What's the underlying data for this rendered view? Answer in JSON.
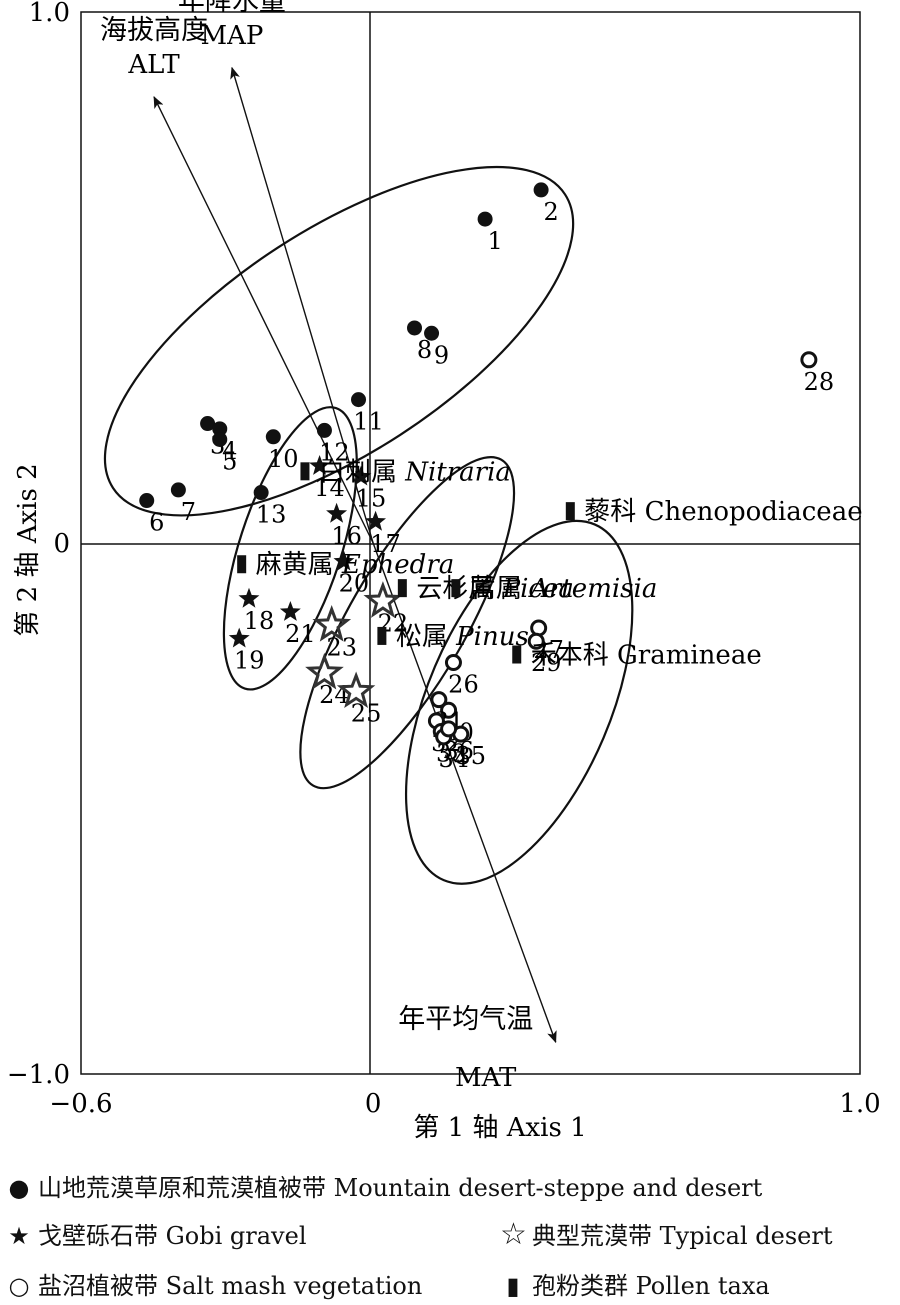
{
  "chart_data": {
    "type": "scatter",
    "title": "",
    "x_axis": {
      "label": "第 1 轴 Axis 1",
      "range": [
        -0.6,
        1.0
      ],
      "ticks": [
        {
          "value": -0.6,
          "label": "−0.6"
        },
        {
          "value": 0,
          "label": "0"
        },
        {
          "value": 1.0,
          "label": "1.0"
        }
      ]
    },
    "y_axis": {
      "label": "第 2 轴 Axis 2",
      "range": [
        -1.0,
        1.0
      ],
      "ticks": [
        {
          "value": 1.0,
          "label": "1.0"
        },
        {
          "value": 0,
          "label": "0"
        },
        {
          "value": -1.0,
          "label": "−1.0"
        }
      ]
    },
    "series": [
      {
        "name": "山地荒漠草原和荒漠植被带 Mountain desert-steppe and desert",
        "marker": "filled-circle",
        "points": [
          {
            "id": "1",
            "x": 0.23,
            "y": 0.61
          },
          {
            "id": "2",
            "x": 0.345,
            "y": 0.665
          },
          {
            "id": "3",
            "x": -0.34,
            "y": 0.225
          },
          {
            "id": "4",
            "x": -0.315,
            "y": 0.215
          },
          {
            "id": "5",
            "x": -0.315,
            "y": 0.195
          },
          {
            "id": "6",
            "x": -0.465,
            "y": 0.08
          },
          {
            "id": "7",
            "x": -0.4,
            "y": 0.1
          },
          {
            "id": "8",
            "x": 0.085,
            "y": 0.405
          },
          {
            "id": "9",
            "x": 0.12,
            "y": 0.395
          },
          {
            "id": "10",
            "x": -0.205,
            "y": 0.2
          },
          {
            "id": "11",
            "x": -0.03,
            "y": 0.27
          },
          {
            "id": "12",
            "x": -0.1,
            "y": 0.212
          },
          {
            "id": "13",
            "x": -0.23,
            "y": 0.095
          }
        ]
      },
      {
        "name": "戈壁砾石带 Gobi gravel",
        "marker": "filled-star",
        "points": [
          {
            "id": "14",
            "x": -0.11,
            "y": 0.145
          },
          {
            "id": "15",
            "x": -0.025,
            "y": 0.125
          },
          {
            "id": "16",
            "x": -0.075,
            "y": 0.055
          },
          {
            "id": "17",
            "x": 0.005,
            "y": 0.04
          },
          {
            "id": "18",
            "x": -0.255,
            "y": -0.105
          },
          {
            "id": "19",
            "x": -0.275,
            "y": -0.18
          },
          {
            "id": "20",
            "x": -0.06,
            "y": -0.035
          },
          {
            "id": "21",
            "x": -0.17,
            "y": -0.13
          }
        ]
      },
      {
        "name": "典型荒漠带 Typical desert",
        "marker": "hollow-star",
        "points": [
          {
            "id": "22",
            "x": 0.02,
            "y": -0.11
          },
          {
            "id": "23",
            "x": -0.085,
            "y": -0.155
          },
          {
            "id": "24",
            "x": -0.1,
            "y": -0.245
          },
          {
            "id": "25",
            "x": -0.035,
            "y": -0.28
          }
        ]
      },
      {
        "name": "盐沼植被带 Salt mash vegetation",
        "marker": "hollow-circle",
        "points": [
          {
            "id": "26",
            "x": 0.165,
            "y": -0.225
          },
          {
            "id": "27",
            "x": 0.34,
            "y": -0.16
          },
          {
            "id": "28",
            "x": 0.895,
            "y": 0.345
          },
          {
            "id": "29",
            "x": 0.335,
            "y": -0.185
          },
          {
            "id": "30",
            "x": 0.155,
            "y": -0.315
          },
          {
            "id": "31",
            "x": 0.135,
            "y": -0.295
          },
          {
            "id": "32",
            "x": 0.13,
            "y": -0.335
          },
          {
            "id": "33",
            "x": 0.14,
            "y": -0.355
          },
          {
            "id": "34",
            "x": 0.145,
            "y": -0.365
          },
          {
            "id": "35",
            "x": 0.18,
            "y": -0.36
          },
          {
            "id": "36",
            "x": 0.155,
            "y": -0.35
          }
        ]
      },
      {
        "name": "孢粉类群 Pollen taxa",
        "marker": "bar",
        "points": [
          {
            "zh": "白刺属",
            "la": "Nitraria",
            "x": -0.14,
            "y": 0.135
          },
          {
            "zh": "麻黄属",
            "la": "Ephedra",
            "x": -0.27,
            "y": -0.04
          },
          {
            "zh": "云杉属",
            "la": "Picea",
            "x": 0.06,
            "y": -0.085
          },
          {
            "zh": "蒿属",
            "la": "Artemisia",
            "x": 0.17,
            "y": -0.085
          },
          {
            "zh": "松属",
            "la": "Pinus",
            "x": 0.018,
            "y": -0.175
          },
          {
            "zh": "禾本科",
            "la": "Gramineae",
            "x": 0.295,
            "y": -0.21
          },
          {
            "zh": "藜科",
            "la": "Chenopodiaceae",
            "x": 0.405,
            "y": 0.06
          }
        ]
      }
    ],
    "vectors": [
      {
        "zh": "海拔高度",
        "en": "ALT",
        "x": -0.45,
        "y": 0.84
      },
      {
        "zh": "年降水量",
        "en": "MAP",
        "x": -0.29,
        "y": 0.895
      },
      {
        "zh": "年平均气温",
        "en": "MAT",
        "x": 0.375,
        "y": -0.94
      }
    ],
    "ellipses": [
      {
        "name": "Mountain desert-steppe and desert",
        "cx": -0.07,
        "cy": 0.38,
        "rx": 0.53,
        "ry": 0.22,
        "rotation": -33
      },
      {
        "name": "Gobi gravel",
        "cx": -0.17,
        "cy": -0.01,
        "rx": 0.29,
        "ry": 0.1,
        "rotation": 108
      },
      {
        "name": "Typical desert",
        "cx": 0.07,
        "cy": -0.15,
        "rx": 0.37,
        "ry": 0.115,
        "rotation": 120
      },
      {
        "name": "Salt mash vegetation",
        "cx": 0.3,
        "cy": -0.3,
        "rx": 0.38,
        "ry": 0.18,
        "rotation": 113
      }
    ]
  },
  "legend": {
    "mountain": "山地荒漠草原和荒漠植被带 Mountain desert-steppe and desert",
    "gobi": "戈壁砾石带 Gobi gravel",
    "typical": "典型荒漠带 Typical desert",
    "salt": "盐沼植被带 Salt mash vegetation",
    "pollen": "孢粉类群 Pollen taxa"
  }
}
